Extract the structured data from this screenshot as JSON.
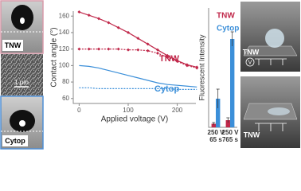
{
  "chart_data": [
    {
      "type": "line",
      "ylabel": "Contact angle (°)",
      "xlabel": "Applied voltage (V)",
      "x": [
        0,
        20,
        40,
        60,
        80,
        100,
        120,
        140,
        160,
        180,
        200,
        220,
        240
      ],
      "xlim": [
        -12,
        238
      ],
      "xticks": [
        0,
        100,
        200
      ],
      "ylim": [
        54,
        166
      ],
      "yticks": [
        60,
        80,
        100,
        120,
        140,
        160
      ],
      "series": [
        {
          "name": "TNW",
          "color": "#c0284a",
          "marker": true,
          "dash": false,
          "values": [
            165,
            161,
            157,
            152,
            146,
            140,
            133,
            126,
            119,
            112,
            106,
            101,
            98
          ]
        },
        {
          "color": "#c0284a",
          "marker": true,
          "dash": true,
          "values": [
            120,
            120,
            120,
            120,
            120,
            119,
            119,
            118,
            115,
            110,
            105,
            100,
            97
          ]
        },
        {
          "name": "Cytop",
          "color": "#3b8fd9",
          "marker": false,
          "dash": false,
          "values": [
            100,
            99,
            97,
            94,
            91,
            88,
            85,
            82,
            79,
            77,
            76,
            75,
            74
          ]
        },
        {
          "color": "#3b8fd9",
          "marker": false,
          "dash": true,
          "values": [
            73,
            73,
            72,
            72,
            72,
            72,
            72,
            72,
            72,
            72,
            71,
            71,
            71
          ]
        }
      ]
    },
    {
      "type": "bar",
      "ylabel": "Fluorescent Intensity",
      "categories": [
        "250 V\n65 s",
        "250 V\n765 s"
      ],
      "ylim": [
        0,
        100
      ],
      "series": [
        {
          "name": "TNW",
          "color": "#c0284a",
          "values": [
            3,
            6
          ],
          "errors": [
            1,
            2
          ]
        },
        {
          "name": "Cytop",
          "color": "#3b8fd9",
          "values": [
            24,
            74
          ],
          "errors": [
            8,
            6
          ]
        }
      ]
    }
  ],
  "photos": {
    "top_label": "TNW",
    "scale_label": "1 μm",
    "bottom_label": "Cytop"
  },
  "illustrations": {
    "top_label": "TNW",
    "voltage_label": "V",
    "bottom_label": "TNW"
  }
}
